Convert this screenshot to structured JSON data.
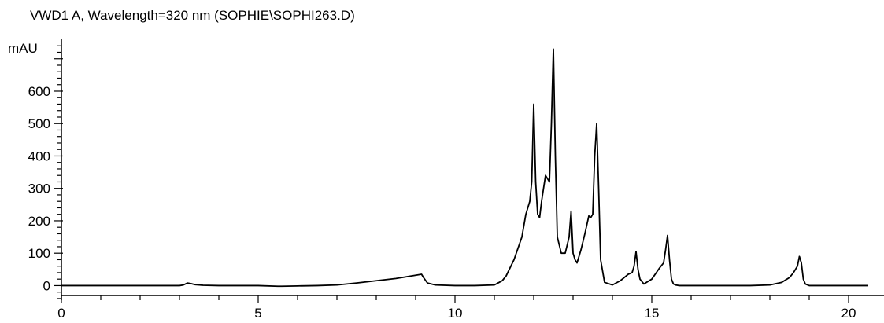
{
  "chart_data": {
    "type": "line",
    "title": "VWD1 A, Wavelength=320 nm (SOPHIE\\SOPHI263.D)",
    "ylabel": "mAU",
    "xlabel": "",
    "xlim": [
      0,
      20.5
    ],
    "ylim": [
      -45,
      760
    ],
    "x_ticks": [
      0,
      5,
      10,
      15,
      20
    ],
    "y_ticks": [
      0,
      100,
      200,
      300,
      400,
      500,
      600
    ],
    "grid": false,
    "colors": {
      "line": "#000000",
      "axis": "#000000"
    },
    "series": [
      {
        "x": [
          0,
          3.0,
          3.1,
          3.2,
          3.3,
          3.4,
          3.6,
          4.0,
          5.0,
          5.5,
          5.6,
          6.0,
          6.5,
          7.0,
          7.5,
          8.0,
          8.5,
          9.0,
          9.15,
          9.2,
          9.3,
          9.5,
          10.0,
          10.5,
          11.0,
          11.2,
          11.3,
          11.5,
          11.7,
          11.8,
          11.85,
          11.9,
          11.95,
          12.0,
          12.05,
          12.1,
          12.15,
          12.2,
          12.3,
          12.35,
          12.4,
          12.45,
          12.5,
          12.55,
          12.6,
          12.7,
          12.8,
          12.9,
          12.95,
          13.0,
          13.05,
          13.1,
          13.2,
          13.3,
          13.4,
          13.45,
          13.5,
          13.55,
          13.6,
          13.65,
          13.7,
          13.8,
          14.0,
          14.2,
          14.4,
          14.5,
          14.55,
          14.6,
          14.65,
          14.7,
          14.8,
          15.0,
          15.2,
          15.3,
          15.35,
          15.4,
          15.45,
          15.5,
          15.55,
          15.6,
          15.7,
          16.0,
          17.0,
          17.5,
          18.0,
          18.3,
          18.5,
          18.6,
          18.7,
          18.75,
          18.8,
          18.85,
          18.9,
          19.0,
          19.5,
          20.0,
          20.5
        ],
        "values": [
          0,
          0,
          2,
          8,
          6,
          3,
          1,
          0,
          0,
          -2,
          -2,
          -1,
          0,
          2,
          8,
          15,
          22,
          32,
          35,
          25,
          8,
          2,
          0,
          0,
          2,
          15,
          30,
          80,
          150,
          220,
          240,
          260,
          320,
          560,
          320,
          220,
          210,
          260,
          340,
          330,
          320,
          500,
          730,
          400,
          150,
          100,
          100,
          150,
          230,
          100,
          80,
          70,
          110,
          160,
          215,
          210,
          220,
          400,
          500,
          300,
          80,
          10,
          2,
          15,
          35,
          40,
          60,
          105,
          50,
          20,
          5,
          20,
          55,
          70,
          110,
          155,
          80,
          20,
          5,
          2,
          0,
          0,
          0,
          0,
          2,
          10,
          25,
          40,
          60,
          90,
          70,
          20,
          5,
          0,
          0,
          0,
          0
        ]
      }
    ]
  }
}
